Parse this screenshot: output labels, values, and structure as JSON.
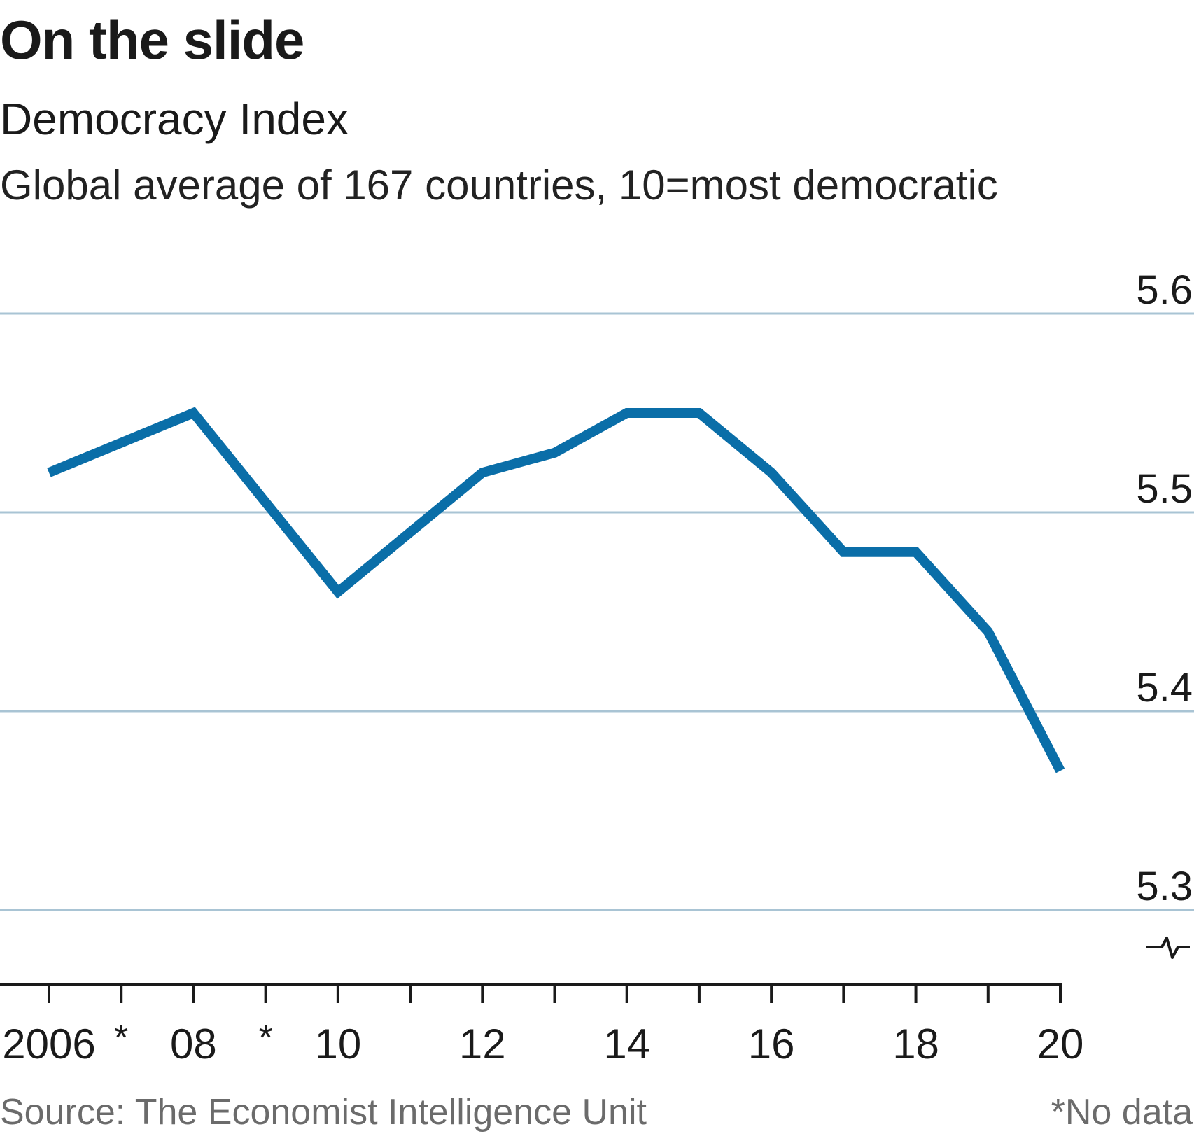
{
  "title": "On the slide",
  "subtitle": "Democracy Index",
  "description": "Global average of 167 countries, 10=most democratic",
  "source": "Source: The Economist Intelligence Unit",
  "footnote": "*No data",
  "colors": {
    "line": "#0a6ea8",
    "grid": "#a9c4d4",
    "axis": "#1a1a1a",
    "text": "#1a1a1a",
    "muted": "#6b6b6b"
  },
  "chart_data": {
    "type": "line",
    "title": "On the slide",
    "subtitle": "Democracy Index",
    "xlabel": "",
    "ylabel": "",
    "ylim": [
      5.3,
      5.6
    ],
    "yticks": [
      5.3,
      5.4,
      5.5,
      5.6
    ],
    "ytick_labels": [
      "5.3",
      "5.4",
      "5.5",
      "5.6"
    ],
    "y_axis_position": "right",
    "y_axis_broken": true,
    "xlim": [
      2006,
      2020
    ],
    "xticks": [
      2006,
      2007,
      2008,
      2009,
      2010,
      2011,
      2012,
      2013,
      2014,
      2015,
      2016,
      2017,
      2018,
      2019,
      2020
    ],
    "xtick_labels": [
      {
        "x": 2006,
        "label": "2006"
      },
      {
        "x": 2007,
        "label": "*"
      },
      {
        "x": 2008,
        "label": "08"
      },
      {
        "x": 2009,
        "label": "*"
      },
      {
        "x": 2010,
        "label": "10"
      },
      {
        "x": 2012,
        "label": "12"
      },
      {
        "x": 2014,
        "label": "14"
      },
      {
        "x": 2016,
        "label": "16"
      },
      {
        "x": 2018,
        "label": "18"
      },
      {
        "x": 2020,
        "label": "20"
      }
    ],
    "grid": true,
    "series": [
      {
        "x": [
          2006,
          2008,
          2010,
          2011,
          2012,
          2013,
          2014,
          2015,
          2016,
          2017,
          2018,
          2019,
          2020
        ],
        "values": [
          5.52,
          5.55,
          5.46,
          5.49,
          5.52,
          5.53,
          5.55,
          5.55,
          5.52,
          5.48,
          5.48,
          5.44,
          5.37
        ]
      }
    ]
  }
}
